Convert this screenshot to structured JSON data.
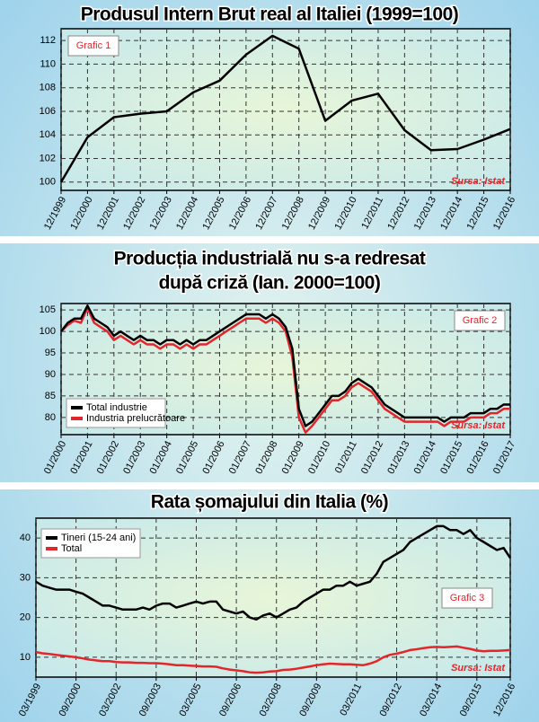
{
  "chart_data": [
    {
      "type": "line",
      "title": [
        "Produsul Intern Brut real al Italiei (1999=100)"
      ],
      "annotation": "Grafic 1",
      "source": "Sursa: Istat",
      "categories": [
        "12/1999",
        "12/2000",
        "12/2001",
        "12/2002",
        "12/2003",
        "12/2004",
        "12/2005",
        "12/2006",
        "12/2007",
        "12/2008",
        "12/2009",
        "12/2010",
        "12/2011",
        "12/2012",
        "12/2013",
        "12/2014",
        "12/2015",
        "12/2016"
      ],
      "series": [
        {
          "color": "#000000",
          "values": [
            100,
            103.8,
            105.5,
            105.8,
            106,
            107.6,
            108.6,
            110.8,
            112.4,
            111.3,
            105.2,
            106.9,
            107.5,
            104.4,
            102.7,
            102.8,
            103.6,
            104.5
          ]
        }
      ],
      "ylim": [
        99.3,
        113
      ],
      "yticks": [
        100,
        102,
        104,
        106,
        108,
        110,
        112
      ],
      "grid": true
    },
    {
      "type": "line",
      "title": [
        "Producția industrială nu s-a redresat",
        "după criză (Ian. 2000=100)"
      ],
      "annotation": "Grafic 2",
      "source": "Sursa: Istat",
      "legend": "lower left",
      "categories": [
        "01/2000",
        null,
        null,
        null,
        "01/2001",
        null,
        null,
        null,
        "01/2002",
        null,
        null,
        null,
        "01/2003",
        null,
        null,
        null,
        "01/2004",
        null,
        null,
        null,
        "01/2005",
        null,
        null,
        null,
        "01/2006",
        null,
        null,
        null,
        "01/2007",
        null,
        null,
        null,
        "01/2008",
        null,
        null,
        null,
        "01/2009",
        null,
        null,
        null,
        "01/2010",
        null,
        null,
        null,
        "01/2011",
        null,
        null,
        null,
        "01/2012",
        null,
        null,
        null,
        "01/2013",
        null,
        null,
        null,
        "01/2014",
        null,
        null,
        null,
        "01/2015",
        null,
        null,
        null,
        "01/2016",
        null,
        null,
        null,
        "01/2017"
      ],
      "series": [
        {
          "name": "Total industrie",
          "color": "#000000",
          "values": [
            100,
            102,
            103,
            103,
            106,
            103,
            102,
            101,
            99,
            100,
            99,
            98,
            99,
            98,
            98,
            97,
            98,
            98,
            97,
            98,
            97,
            98,
            98,
            99,
            100,
            101,
            102,
            103,
            104,
            104,
            104,
            103,
            104,
            103,
            101,
            96,
            82,
            78,
            79,
            81,
            83,
            85,
            85,
            86,
            88,
            89,
            88,
            87,
            85,
            83,
            82,
            81,
            80,
            80,
            80,
            80,
            80,
            80,
            79,
            80,
            80,
            80,
            81,
            81,
            81,
            82,
            82,
            83,
            83
          ]
        },
        {
          "name": "Industria prelucrătoare",
          "color": "#e3262b",
          "values": [
            100,
            101.5,
            102.5,
            102,
            105.5,
            102,
            101,
            100,
            98,
            99,
            98,
            97,
            98,
            97,
            97,
            96,
            97,
            97,
            96,
            97,
            96,
            97,
            97,
            98,
            99,
            100,
            101,
            102,
            103,
            103,
            103,
            102,
            103,
            102,
            100,
            94,
            80,
            76.5,
            78,
            80,
            82,
            84,
            84,
            85,
            87,
            88,
            87,
            86,
            84,
            82,
            81,
            80,
            79,
            79,
            79,
            79,
            79,
            79,
            78,
            79,
            79,
            79,
            80,
            80,
            80,
            81,
            81,
            82,
            82
          ]
        }
      ],
      "ylim": [
        76,
        106.5
      ],
      "yticks": [
        80,
        85,
        90,
        95,
        100,
        105
      ],
      "grid": true
    },
    {
      "type": "line",
      "title": [
        "Rata șomajului din Italia (%)"
      ],
      "annotation": "Grafic 3",
      "source": "Sursa: Istat",
      "legend": "upper left",
      "categories": [
        "03/1999",
        null,
        null,
        null,
        null,
        null,
        "09/2000",
        null,
        null,
        null,
        null,
        null,
        "03/2002",
        null,
        null,
        null,
        null,
        null,
        "09/2003",
        null,
        null,
        null,
        null,
        null,
        "03/2005",
        null,
        null,
        null,
        null,
        null,
        "09/2006",
        null,
        null,
        null,
        null,
        null,
        "03/2008",
        null,
        null,
        null,
        null,
        null,
        "09/2009",
        null,
        null,
        null,
        null,
        null,
        "03/2011",
        null,
        null,
        null,
        null,
        null,
        "09/2012",
        null,
        null,
        null,
        null,
        null,
        "03/2014",
        null,
        null,
        null,
        null,
        null,
        "09/2015",
        null,
        null,
        null,
        null,
        "12/2016"
      ],
      "series": [
        {
          "name": "Tineri (15-24 ani)",
          "color": "#000000",
          "values": [
            29,
            28,
            27.5,
            27,
            27,
            27,
            26.5,
            26,
            25,
            24,
            23,
            23,
            22.5,
            22,
            22,
            22,
            22.5,
            22,
            23,
            23.5,
            23.5,
            22.5,
            23,
            23.5,
            24,
            23.5,
            24,
            24,
            22,
            21.5,
            21,
            21.5,
            20,
            19.5,
            20.5,
            21,
            20,
            21,
            22,
            22.5,
            24,
            25,
            26,
            27,
            27,
            28,
            28,
            29,
            28,
            28.5,
            29,
            31,
            34,
            35,
            36,
            37,
            39,
            40,
            41,
            42,
            43,
            43,
            42,
            42,
            41,
            42,
            40,
            39,
            38,
            37,
            37.5,
            35
          ]
        },
        {
          "name": "Total",
          "color": "#e3262b",
          "values": [
            11.3,
            11,
            10.8,
            10.6,
            10.4,
            10.2,
            10,
            9.7,
            9.4,
            9.2,
            9,
            9,
            8.8,
            8.7,
            8.7,
            8.6,
            8.6,
            8.5,
            8.5,
            8.4,
            8.2,
            8,
            8,
            7.9,
            7.8,
            7.7,
            7.7,
            7.6,
            7.2,
            6.9,
            6.7,
            6.5,
            6.2,
            6.1,
            6.2,
            6.4,
            6.5,
            6.8,
            6.9,
            7.1,
            7.4,
            7.7,
            8,
            8.2,
            8.4,
            8.3,
            8.2,
            8.2,
            8.1,
            8,
            8.4,
            9,
            10,
            10.6,
            10.9,
            11.3,
            11.8,
            12,
            12.3,
            12.5,
            12.6,
            12.5,
            12.6,
            12.7,
            12.4,
            12.1,
            11.7,
            11.5,
            11.6,
            11.6,
            11.7,
            11.8
          ]
        }
      ],
      "ylim": [
        5,
        45
      ],
      "yticks": [
        10,
        20,
        30,
        40
      ],
      "grid": true
    }
  ]
}
